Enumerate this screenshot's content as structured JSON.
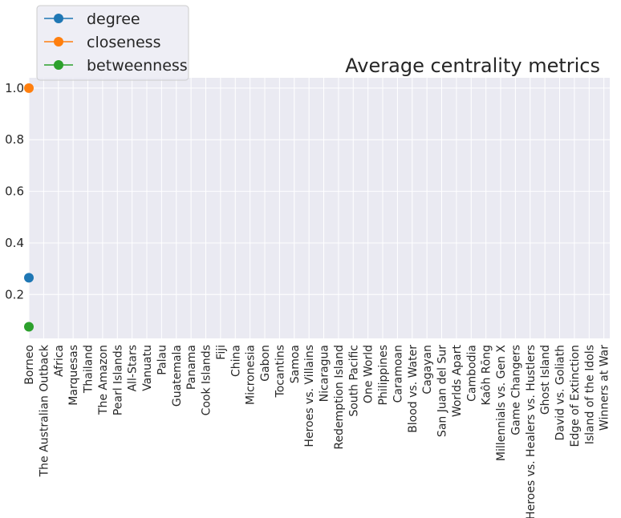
{
  "chart_data": {
    "type": "line",
    "title": "Average centrality metrics",
    "categories": [
      "Borneo",
      "The Australian Outback",
      "Africa",
      "Marquesas",
      "Thailand",
      "The Amazon",
      "Pearl Islands",
      "All-Stars",
      "Vanuatu",
      "Palau",
      "Guatemala",
      "Panama",
      "Cook Islands",
      "Fiji",
      "China",
      "Micronesia",
      "Gabon",
      "Tocantins",
      "Samoa",
      "Heroes vs. Villains",
      "Nicaragua",
      "Redemption Island",
      "South Pacific",
      "One World",
      "Philippines",
      "Caramoan",
      "Blood vs. Water",
      "Cagayan",
      "San Juan del Sur",
      "Worlds Apart",
      "Cambodia",
      "Kaôh Rōng",
      "Millennials vs. Gen X",
      "Game Changers",
      "Heroes vs. Healers vs. Hustlers",
      "Ghost Island",
      "David vs. Goliath",
      "Edge of Extinction",
      "Island of the Idols",
      "Winners at War"
    ],
    "series": [
      {
        "name": "degree",
        "color": "#1f77b4",
        "values": [
          0.265,
          null,
          null,
          null,
          null,
          null,
          null,
          null,
          null,
          null,
          null,
          null,
          null,
          null,
          null,
          null,
          null,
          null,
          null,
          null,
          null,
          null,
          null,
          null,
          null,
          null,
          null,
          null,
          null,
          null,
          null,
          null,
          null,
          null,
          null,
          null,
          null,
          null,
          null,
          null
        ]
      },
      {
        "name": "closeness",
        "color": "#ff7f0e",
        "values": [
          1.0,
          null,
          null,
          null,
          null,
          null,
          null,
          null,
          null,
          null,
          null,
          null,
          null,
          null,
          null,
          null,
          null,
          null,
          null,
          null,
          null,
          null,
          null,
          null,
          null,
          null,
          null,
          null,
          null,
          null,
          null,
          null,
          null,
          null,
          null,
          null,
          null,
          null,
          null,
          null
        ]
      },
      {
        "name": "betweenness",
        "color": "#2ca02c",
        "values": [
          0.075,
          null,
          null,
          null,
          null,
          null,
          null,
          null,
          null,
          null,
          null,
          null,
          null,
          null,
          null,
          null,
          null,
          null,
          null,
          null,
          null,
          null,
          null,
          null,
          null,
          null,
          null,
          null,
          null,
          null,
          null,
          null,
          null,
          null,
          null,
          null,
          null,
          null,
          null,
          null
        ]
      }
    ],
    "ylim": [
      0.03,
      1.04
    ],
    "yticks": [
      0.2,
      0.4,
      0.6,
      0.8,
      {
        "value": 1,
        "label": "1.0"
      }
    ],
    "grid": true,
    "legend": "upper left"
  }
}
